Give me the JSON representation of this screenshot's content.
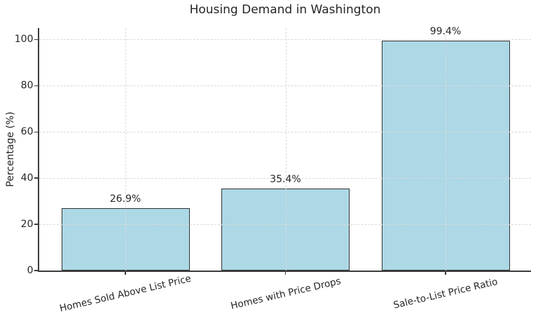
{
  "chart_data": {
    "type": "bar",
    "title": "Housing Demand in Washington",
    "xlabel": "",
    "ylabel": "Percentage (%)",
    "categories": [
      "Homes Sold Above List Price",
      "Homes with Price Drops",
      "Sale-to-List Price Ratio"
    ],
    "values": [
      26.9,
      35.4,
      99.4
    ],
    "value_labels": [
      "26.9%",
      "35.4%",
      "99.4%"
    ],
    "yticks": [
      0,
      20,
      40,
      60,
      80,
      100
    ],
    "ylim": [
      0,
      105
    ],
    "grid": "dashed, both axes, drawn above bars",
    "legend": "none",
    "colors": {
      "bar_fill": "#add8e6",
      "bar_edge": "#333333",
      "grid": "#d9d9d9",
      "spine": "#3c3c3c",
      "text": "#262626",
      "background": "#ffffff"
    }
  }
}
